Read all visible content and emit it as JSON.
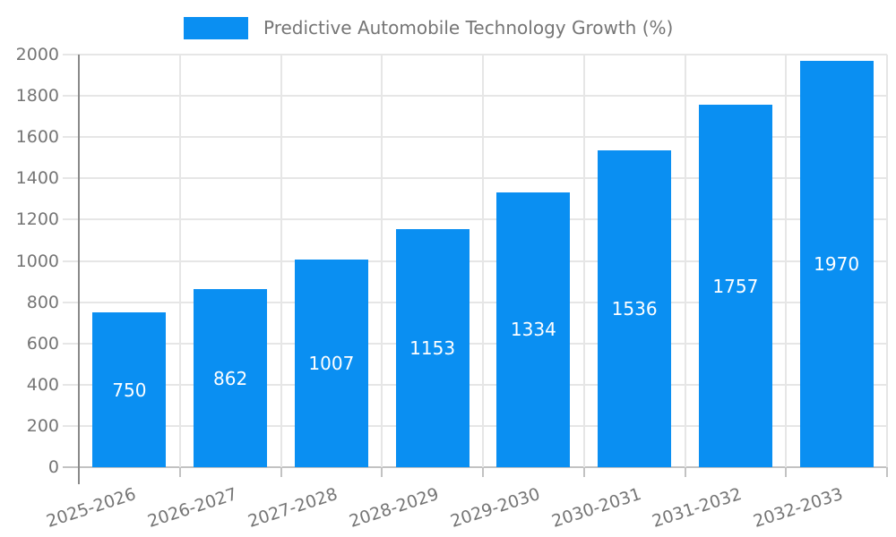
{
  "chart_data": {
    "type": "bar",
    "title": "Predictive Automobile Technology Growth (%)",
    "categories": [
      "2025-2026",
      "2026-2027",
      "2027-2028",
      "2028-2029",
      "2029-2030",
      "2030-2031",
      "2031-2032",
      "2032-2033"
    ],
    "values": [
      750,
      862,
      1007,
      1153,
      1334,
      1536,
      1757,
      1970
    ],
    "xlabel": "",
    "ylabel": "",
    "ylim": [
      0,
      2000
    ],
    "yticks": [
      0,
      200,
      400,
      600,
      800,
      1000,
      1200,
      1400,
      1600,
      1800,
      2000
    ],
    "grid": true,
    "legend_position": "top",
    "value_labels": "inside-center",
    "x_label_rotation_deg": -18,
    "colors": {
      "bar": "#0a8ff2",
      "axis_text": "#757575",
      "grid": "#e6e6e6",
      "baseline": "#c2c2c2",
      "axis_line": "#8a8a8a",
      "value_label": "#ffffff",
      "background": "#ffffff"
    }
  }
}
